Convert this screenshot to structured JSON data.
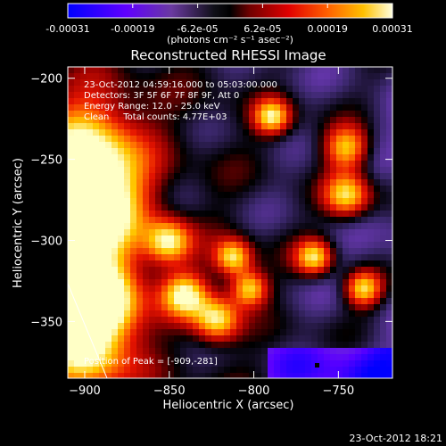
{
  "chart_data": {
    "type": "heatmap",
    "title": "Reconstructed RHESSI Image",
    "xlabel": "Heliocentric X (arcsec)",
    "ylabel": "Heliocentric Y (arcsec)",
    "x_ticks": [
      -900,
      -850,
      -800,
      -750
    ],
    "y_ticks": [
      -200,
      -250,
      -300,
      -350
    ],
    "xlim": [
      -910,
      -718
    ],
    "ylim": [
      -385,
      -193
    ],
    "colorbar": {
      "ticks": [
        "-0.00031",
        "-0.00019",
        "-6.2e-05",
        "6.2e-05",
        "0.00019",
        "0.00031"
      ],
      "range": [
        -0.00031,
        0.00031
      ],
      "unit_label": "(photons cm⁻² s⁻¹ asec⁻²)"
    },
    "annotations": [
      "23-Oct-2012 04:59:16.000 to 05:03:00.000",
      "Detectors: 3F 5F 6F 7F 8F 9F, Att 0",
      "Energy Range: 12.0 - 25.0 keV",
      "Clean     Total counts: 4.77E+03"
    ],
    "peak_label": "Position of Peak = [-909,-281]",
    "timestamp": "23-Oct-2012 18:21",
    "colors": {
      "cmap": [
        "#0000ff",
        "#3000c0",
        "#8000ff",
        "#3c2870",
        "#000000",
        "#c00000",
        "#ff4000",
        "#ffa000",
        "#ffff80",
        "#ffffff"
      ]
    }
  }
}
